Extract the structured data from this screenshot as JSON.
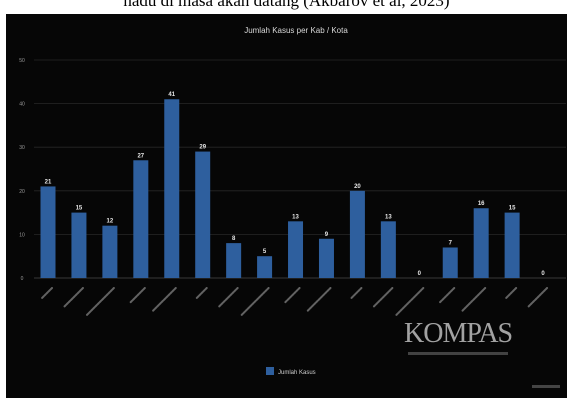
{
  "caption_fragment": "hadu di masa akan datang (Akbarov et al, 2023)",
  "watermark": "KOMPAS",
  "chart_data": {
    "type": "bar",
    "title": "Jumlah Kasus per Kab / Kota",
    "xlabel": "",
    "ylabel": "",
    "ylim": [
      0,
      50
    ],
    "yticks": [
      0,
      10,
      20,
      30,
      40,
      50
    ],
    "grid": true,
    "legend_position": "bottom",
    "bar_color": "#2e5f9e",
    "series": [
      {
        "name": "Jumlah Kasus",
        "values": [
          21,
          15,
          12,
          27,
          41,
          29,
          8,
          5,
          13,
          9,
          20,
          13,
          0,
          7,
          16,
          15,
          0
        ]
      }
    ]
  }
}
